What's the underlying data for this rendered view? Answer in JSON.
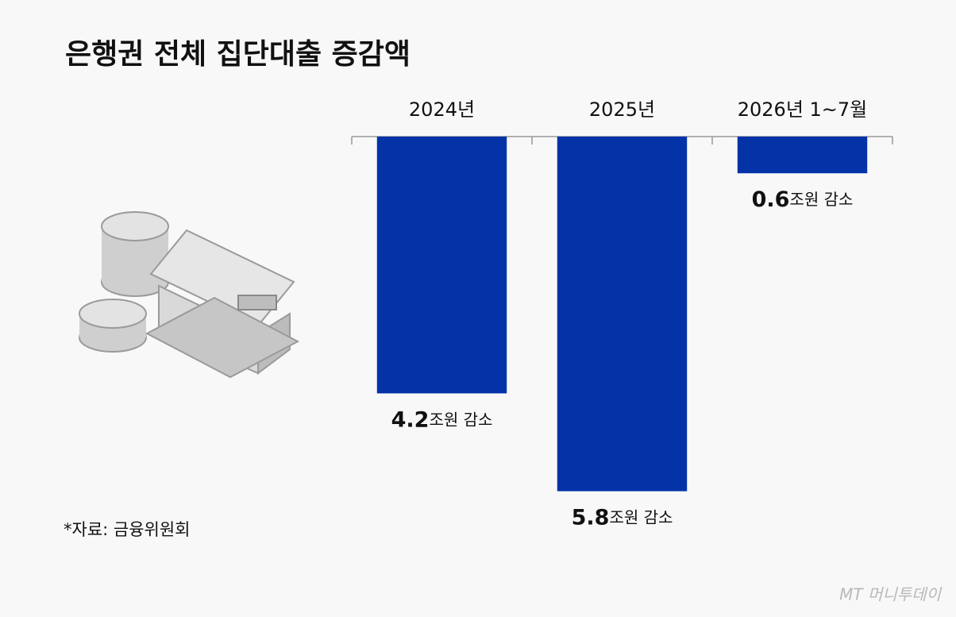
{
  "chart_data": {
    "type": "bar",
    "title": "은행권 전체 집단대출 증감액",
    "categories": [
      "2024년",
      "2025년",
      "2026년 1~7월"
    ],
    "values": [
      -4.2,
      -5.8,
      -0.6
    ],
    "value_labels": [
      "4.2조원 감소",
      "5.8조원 감소",
      "0.6조원 감소"
    ],
    "color": "#0433a8",
    "ylim": [
      -6,
      0
    ],
    "source": "*자료: 금융위원회",
    "watermark": "MT 머니투데이"
  }
}
